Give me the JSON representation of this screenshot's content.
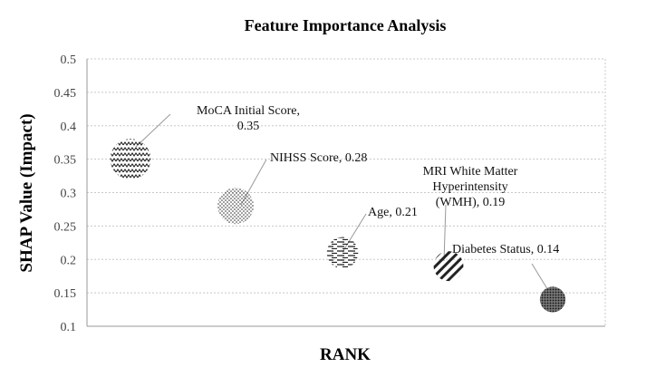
{
  "chart_data": {
    "type": "bubble",
    "title": "Feature Importance Analysis",
    "xlabel": "RANK",
    "ylabel": "SHAP Value (Impact)",
    "ylim": [
      0.1,
      0.5
    ],
    "yticks": [
      "0.1",
      "0.15",
      "0.2",
      "0.25",
      "0.3",
      "0.35",
      "0.4",
      "0.45",
      "0.5"
    ],
    "grid": true,
    "legend": "none",
    "points": [
      {
        "x": 1,
        "y": 0.35,
        "size": 0.35,
        "pattern": "zigzag",
        "label_lines": [
          "MoCA Initial Score,",
          "0.35"
        ]
      },
      {
        "x": 2,
        "y": 0.28,
        "size": 0.28,
        "pattern": "dots",
        "label_lines": [
          "NIHSS Score, 0.28"
        ]
      },
      {
        "x": 3,
        "y": 0.21,
        "size": 0.21,
        "pattern": "horizontal-dashes",
        "label_lines": [
          "Age, 0.21"
        ]
      },
      {
        "x": 4,
        "y": 0.19,
        "size": 0.19,
        "pattern": "diagonal-stripes",
        "label_lines": [
          "MRI White Matter",
          "Hyperintensity",
          "(WMH), 0.19"
        ]
      },
      {
        "x": 5,
        "y": 0.14,
        "size": 0.14,
        "pattern": "dense-dots",
        "label_lines": [
          "Diabetes Status, 0.14"
        ]
      }
    ]
  }
}
